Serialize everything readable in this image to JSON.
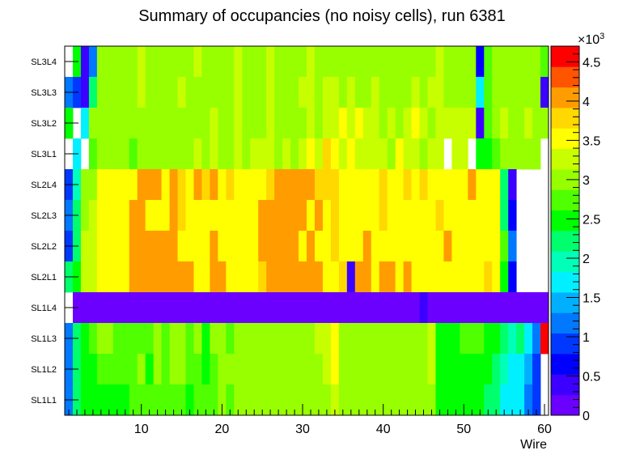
{
  "chart_data": {
    "type": "heatmap",
    "title": "Summary of occupancies (no noisy cells), run 6381",
    "xlabel": "Wire",
    "x_range": [
      0.5,
      60.5
    ],
    "x_ticks": [
      10,
      20,
      30,
      40,
      50,
      60
    ],
    "rows": [
      "SL3L4",
      "SL3L3",
      "SL3L2",
      "SL3L1",
      "SL2L4",
      "SL2L3",
      "SL2L2",
      "SL2L1",
      "SL1L4",
      "SL1L3",
      "SL1L2",
      "SL1L1"
    ],
    "z_multiplier_label": "×10",
    "z_multiplier_exp": "3",
    "z_range": [
      0,
      4700
    ],
    "z_ticks": [
      {
        "value": 0,
        "label": "0"
      },
      {
        "value": 500,
        "label": "0.5"
      },
      {
        "value": 1000,
        "label": "1"
      },
      {
        "value": 1500,
        "label": "1.5"
      },
      {
        "value": 2000,
        "label": "2"
      },
      {
        "value": 2500,
        "label": "2.5"
      },
      {
        "value": 3000,
        "label": "3"
      },
      {
        "value": 3500,
        "label": "3.5"
      },
      {
        "value": 4000,
        "label": "4"
      },
      {
        "value": 4500,
        "label": "4.5"
      }
    ],
    "palette": [
      "#6c00ff",
      "#3b00ff",
      "#0000ff",
      "#0038ff",
      "#0078ff",
      "#00b0ff",
      "#00f0ff",
      "#00ffb8",
      "#00ff6c",
      "#00ff00",
      "#50ff00",
      "#98ff00",
      "#c8ff00",
      "#ffff00",
      "#ffd800",
      "#ff9c00",
      "#ff5400",
      "#ff0000"
    ],
    "values": [
      [
        null,
        2600,
        400,
        1200,
        2900,
        3100,
        2900,
        3000,
        3100,
        3200,
        3000,
        3000,
        3000,
        2900,
        3000,
        2900,
        3200,
        3000,
        3000,
        3000,
        3000,
        3200,
        3000,
        3100,
        3000,
        3200,
        3000,
        3000,
        3000,
        3000,
        3200,
        3000,
        3000,
        3000,
        3000,
        3000,
        3100,
        3000,
        3000,
        3000,
        3000,
        3000,
        3100,
        3000,
        3000,
        3000,
        3300,
        3000,
        3000,
        3000,
        3000,
        600,
        2800,
        3000,
        2900,
        3000,
        3000,
        2900,
        3100,
        2800
      ],
      [
        1200,
        1000,
        500,
        2300,
        3100,
        3000,
        3000,
        3000,
        3100,
        3200,
        3000,
        3000,
        3000,
        3000,
        3200,
        3000,
        3000,
        3100,
        3000,
        3000,
        3100,
        3200,
        3000,
        3100,
        3100,
        3200,
        3000,
        3100,
        3000,
        3200,
        3200,
        3100,
        3200,
        3200,
        3100,
        3300,
        3000,
        3000,
        3300,
        3100,
        3100,
        3000,
        3100,
        3300,
        3000,
        3200,
        3200,
        3100,
        3000,
        3000,
        3100,
        1700,
        2700,
        3100,
        3000,
        3000,
        3000,
        3000,
        3000,
        500
      ],
      [
        2600,
        null,
        1600,
        2900,
        3100,
        3000,
        3000,
        3100,
        3000,
        3100,
        3000,
        3000,
        3000,
        3000,
        3100,
        3000,
        3100,
        3000,
        3200,
        3100,
        3100,
        3200,
        3000,
        3100,
        3100,
        3300,
        3000,
        3100,
        3100,
        3100,
        3300,
        3100,
        3300,
        3200,
        3500,
        3300,
        3500,
        3200,
        3300,
        3100,
        3300,
        3100,
        3300,
        3400,
        3300,
        3100,
        3300,
        3300,
        3300,
        3200,
        3300,
        500,
        2700,
        3100,
        3200,
        3100,
        3100,
        3200,
        3100,
        2900
      ],
      [
        null,
        1700,
        null,
        2700,
        2900,
        3000,
        2900,
        3100,
        2800,
        3100,
        3000,
        2900,
        2900,
        2900,
        3100,
        3000,
        3200,
        3100,
        3200,
        3100,
        3000,
        3200,
        3100,
        3200,
        3200,
        3200,
        3000,
        3200,
        3000,
        3300,
        3400,
        3300,
        3800,
        3400,
        3300,
        3400,
        3300,
        3300,
        3200,
        3300,
        3100,
        3400,
        3300,
        3200,
        3100,
        3200,
        3300,
        null,
        3200,
        3300,
        null,
        2600,
        2600,
        2700,
        3000,
        3000,
        2900,
        3000,
        3000,
        null
      ],
      [
        1000,
        2000,
        2900,
        3000,
        3600,
        3600,
        3600,
        3600,
        3600,
        4000,
        4000,
        4000,
        3600,
        4000,
        3700,
        3600,
        4000,
        3700,
        4000,
        3600,
        3700,
        3600,
        3600,
        3600,
        3600,
        3700,
        4000,
        4000,
        4000,
        4000,
        4000,
        3700,
        3700,
        3700,
        3600,
        3600,
        3600,
        3600,
        3600,
        3700,
        3600,
        3600,
        3700,
        3600,
        3700,
        3600,
        3600,
        3600,
        3600,
        3600,
        4000,
        3600,
        3600,
        3500,
        2300,
        500,
        null,
        null,
        null,
        null
      ],
      [
        1100,
        2100,
        3000,
        3200,
        3400,
        3600,
        3400,
        3600,
        4000,
        4000,
        3600,
        3600,
        3600,
        4000,
        3700,
        3600,
        3600,
        3600,
        3600,
        3600,
        3600,
        3600,
        3600,
        3600,
        4000,
        4000,
        4000,
        4000,
        4000,
        4000,
        3600,
        4000,
        3600,
        3700,
        3500,
        3600,
        3600,
        3600,
        3600,
        3700,
        3600,
        3600,
        3600,
        3600,
        3500,
        3600,
        3700,
        3600,
        3600,
        3500,
        3600,
        3500,
        3600,
        3500,
        2300,
        600,
        null,
        null,
        null,
        null
      ],
      [
        800,
        2300,
        3200,
        3300,
        3600,
        3600,
        3600,
        3600,
        4000,
        4000,
        4000,
        4000,
        4000,
        4000,
        3600,
        3600,
        3600,
        3600,
        4000,
        3600,
        3600,
        3600,
        3600,
        3600,
        4000,
        4000,
        4000,
        4000,
        4000,
        3600,
        4000,
        3600,
        3600,
        3700,
        3500,
        3600,
        3600,
        4000,
        3600,
        3600,
        3600,
        3600,
        3600,
        3600,
        3500,
        3600,
        3600,
        4000,
        3600,
        3600,
        3600,
        3600,
        3500,
        3600,
        2700,
        1200,
        null,
        null,
        null,
        null
      ],
      [
        2200,
        2600,
        3200,
        3300,
        3600,
        3600,
        3600,
        3600,
        4000,
        4000,
        4000,
        4000,
        4000,
        4000,
        4000,
        4000,
        3600,
        3600,
        4000,
        4000,
        3600,
        3600,
        3600,
        3600,
        3700,
        4000,
        4000,
        4000,
        4000,
        4000,
        4000,
        4000,
        3600,
        3600,
        3700,
        300,
        4000,
        4000,
        3600,
        4000,
        4000,
        3600,
        4000,
        3600,
        3600,
        3600,
        3600,
        3600,
        3600,
        3600,
        3600,
        3600,
        3700,
        3500,
        2400,
        600,
        null,
        null,
        null,
        null
      ],
      [
        null,
        100,
        100,
        100,
        200,
        200,
        100,
        200,
        200,
        100,
        200,
        200,
        200,
        200,
        200,
        200,
        200,
        200,
        200,
        200,
        200,
        200,
        200,
        200,
        200,
        100,
        200,
        200,
        100,
        200,
        200,
        200,
        200,
        200,
        200,
        200,
        200,
        200,
        100,
        200,
        200,
        100,
        100,
        100,
        300,
        200,
        200,
        200,
        100,
        100,
        100,
        100,
        100,
        100,
        100,
        100,
        100,
        100,
        100,
        100
      ],
      [
        1300,
        2300,
        2600,
        2800,
        2900,
        2900,
        2800,
        2800,
        2800,
        2800,
        2700,
        2900,
        2800,
        2900,
        2900,
        2800,
        2900,
        2600,
        2900,
        2900,
        2800,
        3000,
        2900,
        3000,
        3100,
        2900,
        3000,
        3100,
        3000,
        2900,
        3100,
        3300,
        3200,
        3400,
        3000,
        3000,
        3100,
        2900,
        3000,
        3100,
        3000,
        3000,
        3000,
        3100,
        3000,
        3200,
        2500,
        2600,
        2600,
        2700,
        2700,
        2700,
        2600,
        2500,
        2300,
        1900,
        2100,
        1600,
        1100,
        4700
      ],
      [
        1100,
        2100,
        2400,
        2600,
        2700,
        2800,
        2700,
        2800,
        2800,
        2900,
        2600,
        2900,
        2800,
        2900,
        2900,
        2800,
        2800,
        2600,
        2800,
        2900,
        2900,
        3000,
        2900,
        2900,
        3100,
        2900,
        3000,
        3100,
        3000,
        3000,
        3100,
        3100,
        3200,
        3400,
        3000,
        3000,
        3100,
        3000,
        3000,
        3100,
        3000,
        3000,
        3100,
        3000,
        3000,
        3300,
        2500,
        2600,
        2500,
        2500,
        2600,
        2600,
        2400,
        2300,
        2000,
        1700,
        1800,
        1400,
        900,
        null
      ],
      [
        1300,
        2100,
        2500,
        2600,
        2600,
        2600,
        2600,
        2600,
        2800,
        2800,
        2800,
        2800,
        2800,
        2800,
        2800,
        2500,
        2800,
        2800,
        2800,
        2900,
        2800,
        2900,
        2900,
        2900,
        3000,
        2900,
        3000,
        3000,
        3100,
        3000,
        3100,
        3100,
        3100,
        3300,
        3000,
        3000,
        3100,
        3000,
        3000,
        3000,
        3000,
        3000,
        3100,
        2900,
        3000,
        3000,
        2400,
        2400,
        2400,
        2400,
        2400,
        2400,
        2300,
        2200,
        1800,
        1700,
        1800,
        1300,
        800,
        null
      ]
    ]
  }
}
